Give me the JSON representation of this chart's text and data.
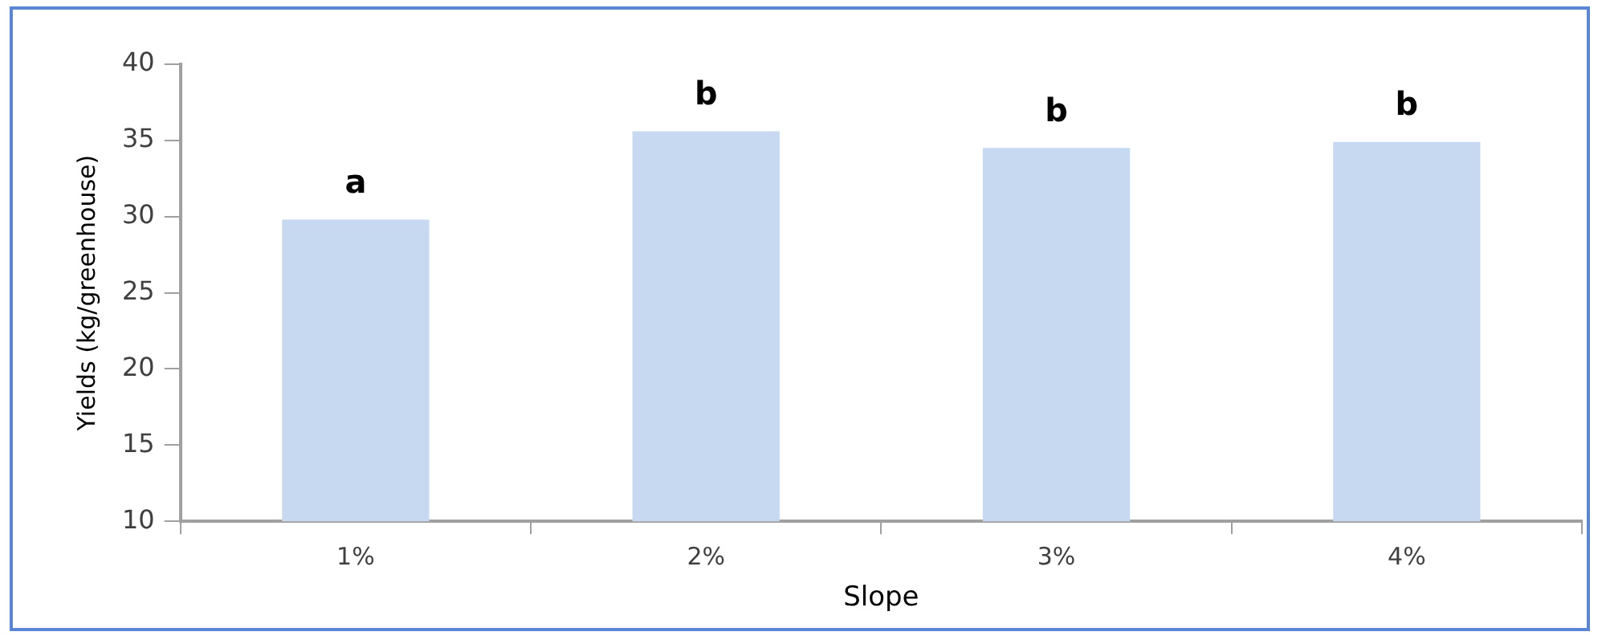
{
  "chart_data": {
    "type": "bar",
    "xlabel": "Slope",
    "ylabel": "Yields (kg/greenhouse)",
    "categories": [
      "1%",
      "2%",
      "3%",
      "4%"
    ],
    "values": [
      29.8,
      35.6,
      34.5,
      34.9
    ],
    "color": "#c6d9f0",
    "ylim": [
      10,
      40
    ],
    "yticks": [
      10,
      15,
      20,
      25,
      30,
      35,
      40
    ],
    "annotations": [
      {
        "text": "a",
        "x": "1%",
        "y": 29.8
      },
      {
        "text": "b",
        "x": "2%",
        "y": 35.6
      },
      {
        "text": "b",
        "x": "3%",
        "y": 34.5
      },
      {
        "text": "b",
        "x": "4%",
        "y": 34.9
      }
    ]
  }
}
